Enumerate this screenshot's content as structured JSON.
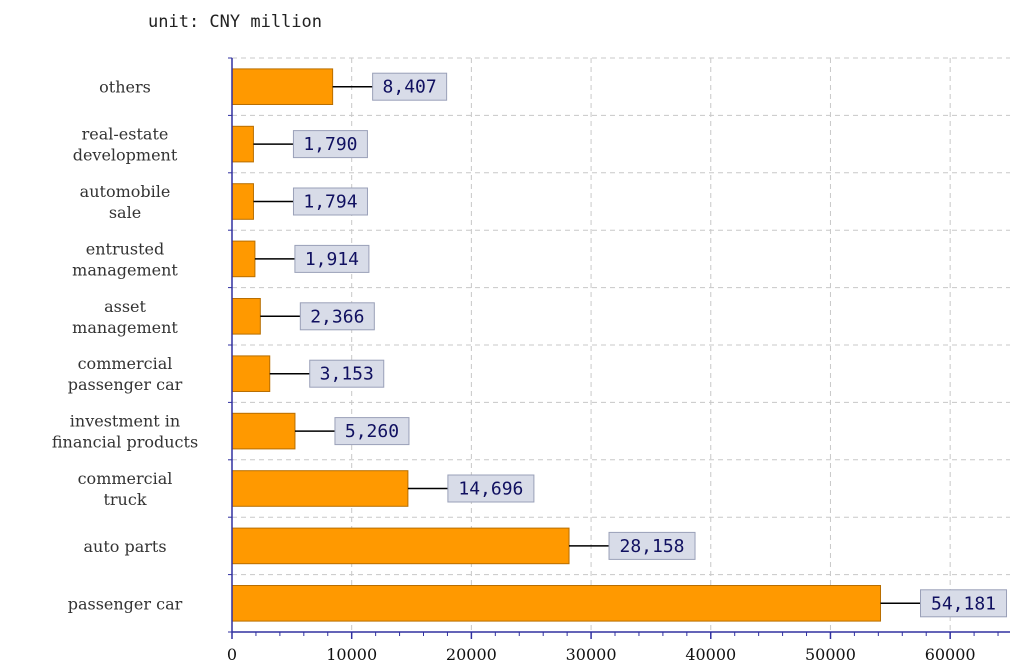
{
  "unit_label": "unit: CNY million",
  "chart_data": {
    "type": "bar",
    "orientation": "horizontal",
    "categories": [
      "passenger car",
      "auto parts",
      "commercial truck",
      "investment in financial products",
      "commercial passenger car",
      "asset management",
      "entrusted management",
      "automobile sale",
      "real-estate development",
      "others"
    ],
    "category_lines": [
      [
        "passenger car"
      ],
      [
        "auto parts"
      ],
      [
        "commercial",
        "truck"
      ],
      [
        "investment in",
        "financial products"
      ],
      [
        "commercial",
        "passenger car"
      ],
      [
        "asset",
        "management"
      ],
      [
        "entrusted",
        "management"
      ],
      [
        "automobile",
        "sale"
      ],
      [
        "real-estate",
        "development"
      ],
      [
        "others"
      ]
    ],
    "values": [
      54181,
      28158,
      14696,
      5260,
      3153,
      2366,
      1914,
      1794,
      1790,
      8407
    ],
    "value_labels": [
      "54,181",
      "28,158",
      "14,696",
      "5,260",
      "3,153",
      "2,366",
      "1,914",
      "1,794",
      "1,790",
      "8,407"
    ],
    "xlim": [
      0,
      65000
    ],
    "xticks": [
      0,
      10000,
      20000,
      30000,
      40000,
      50000,
      60000
    ],
    "xtick_labels": [
      "0",
      "10000",
      "20000",
      "30000",
      "40000",
      "50000",
      "60000"
    ],
    "grid": true,
    "colors": {
      "bar": "#FF9900",
      "bar_edge": "#B86E00",
      "label_box": "#D8DCE8",
      "label_box_edge": "#9AA0B8",
      "label_text": "#101060",
      "axis": "#3030A0",
      "grid": "#C8C8C8"
    }
  }
}
